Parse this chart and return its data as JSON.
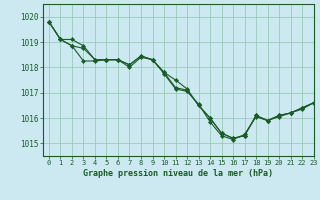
{
  "title": "Graphe pression niveau de la mer (hPa)",
  "background_color": "#cce8f0",
  "grid_color": "#99ccbb",
  "line_color": "#1a5c28",
  "xlim": [
    -0.5,
    23
  ],
  "ylim": [
    1014.5,
    1020.5
  ],
  "yticks": [
    1015,
    1016,
    1017,
    1018,
    1019,
    1020
  ],
  "xticks": [
    0,
    1,
    2,
    3,
    4,
    5,
    6,
    7,
    8,
    9,
    10,
    11,
    12,
    13,
    14,
    15,
    16,
    17,
    18,
    19,
    20,
    21,
    22,
    23
  ],
  "series1": [
    1019.8,
    1019.1,
    1018.85,
    1018.25,
    1018.25,
    1018.3,
    1018.3,
    1018.0,
    1018.4,
    1018.3,
    1017.75,
    1017.15,
    1017.05,
    1016.55,
    1015.85,
    1015.3,
    1015.15,
    1015.35,
    1016.05,
    1015.9,
    1016.05,
    1016.2,
    1016.35,
    1016.6
  ],
  "series2": [
    1019.8,
    1019.1,
    1018.85,
    1018.75,
    1018.3,
    1018.3,
    1018.3,
    1018.1,
    1018.45,
    1018.3,
    1017.8,
    1017.2,
    1017.1,
    1016.5,
    1016.0,
    1015.4,
    1015.2,
    1015.3,
    1016.1,
    1015.9,
    1016.1,
    1016.2,
    1016.4,
    1016.6
  ],
  "series3": [
    1019.8,
    1019.1,
    1019.1,
    1018.85,
    1018.3,
    1018.3,
    1018.3,
    1018.1,
    1018.45,
    1018.3,
    1017.8,
    1017.5,
    1017.15,
    1016.5,
    1016.0,
    1015.4,
    1015.2,
    1015.3,
    1016.1,
    1015.9,
    1016.1,
    1016.2,
    1016.4,
    1016.6
  ]
}
